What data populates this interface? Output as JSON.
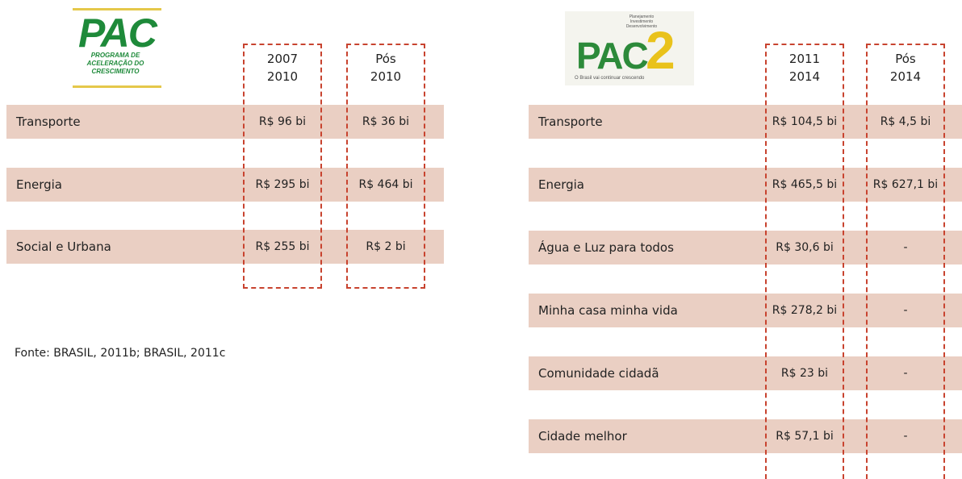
{
  "left": {
    "logo": {
      "title": "PAC",
      "subtitle": "PROGRAMA DE ACELERAÇÃO DO CRESCIMENTO"
    },
    "headers": [
      [
        "2007",
        "2010"
      ],
      [
        "Pós",
        "2010"
      ]
    ],
    "rows": [
      [
        "Transporte",
        "R$ 96 bi",
        "R$ 36 bi"
      ],
      [
        "Energia",
        "R$ 295 bi",
        "R$ 464 bi"
      ],
      [
        "Social e Urbana",
        "R$ 255 bi",
        "R$ 2 bi"
      ]
    ]
  },
  "source": "Fonte: BRASIL, 2011b; BRASIL, 2011c",
  "right": {
    "logo": {
      "title": "PAC",
      "number": "2",
      "top": "Planejamento Investimento Desenvolvimento",
      "subtitle": "O Brasil vai continuar crescendo"
    },
    "headers": [
      [
        "2011",
        "2014"
      ],
      [
        "Pós",
        "2014"
      ]
    ],
    "rows": [
      [
        "Transporte",
        "R$ 104,5 bi",
        "R$ 4,5 bi"
      ],
      [
        "Energia",
        "R$ 465,5 bi",
        "R$ 627,1 bi"
      ],
      [
        "Água e Luz para todos",
        "R$ 30,6 bi",
        "-"
      ],
      [
        "Minha casa minha vida",
        "R$ 278,2 bi",
        "-"
      ],
      [
        "Comunidade cidadã",
        "R$ 23 bi",
        "-"
      ],
      [
        "Cidade melhor",
        "R$ 57,1 bi",
        "-"
      ]
    ]
  }
}
